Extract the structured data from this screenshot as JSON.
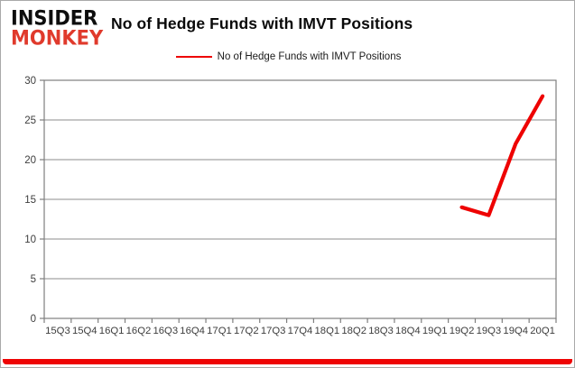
{
  "brand": {
    "line1": "INSIDER",
    "line2": "MONKEY"
  },
  "header": {
    "title": "No of Hedge Funds with IMVT Positions"
  },
  "legend": {
    "label": "No of Hedge Funds with IMVT Positions"
  },
  "chart_data": {
    "type": "line",
    "title": "No of Hedge Funds with IMVT Positions",
    "categories": [
      "15Q3",
      "15Q4",
      "16Q1",
      "16Q2",
      "16Q3",
      "16Q4",
      "17Q1",
      "17Q2",
      "17Q3",
      "17Q4",
      "18Q1",
      "18Q2",
      "18Q3",
      "18Q4",
      "19Q1",
      "19Q2",
      "19Q3",
      "19Q4",
      "20Q1"
    ],
    "series": [
      {
        "name": "No of Hedge Funds with IMVT Positions",
        "color": "#ee0202",
        "values": [
          null,
          null,
          null,
          null,
          null,
          null,
          null,
          null,
          null,
          null,
          null,
          null,
          null,
          null,
          null,
          14,
          13,
          22,
          28
        ]
      }
    ],
    "xlabel": "",
    "ylabel": "",
    "ylim": [
      0,
      30
    ],
    "yticks": [
      0,
      5,
      10,
      15,
      20,
      25,
      30
    ],
    "grid": "horizontal",
    "legend_position": "top-center"
  },
  "colors": {
    "line": "#ee0202",
    "grid": "#8c8c8c",
    "axis": "#7f7f7f",
    "tick_label": "#3d3d3d",
    "brand_black": "#0d0d0d",
    "brand_red": "#e03a2c",
    "bottom_bar": "#ee0404"
  }
}
